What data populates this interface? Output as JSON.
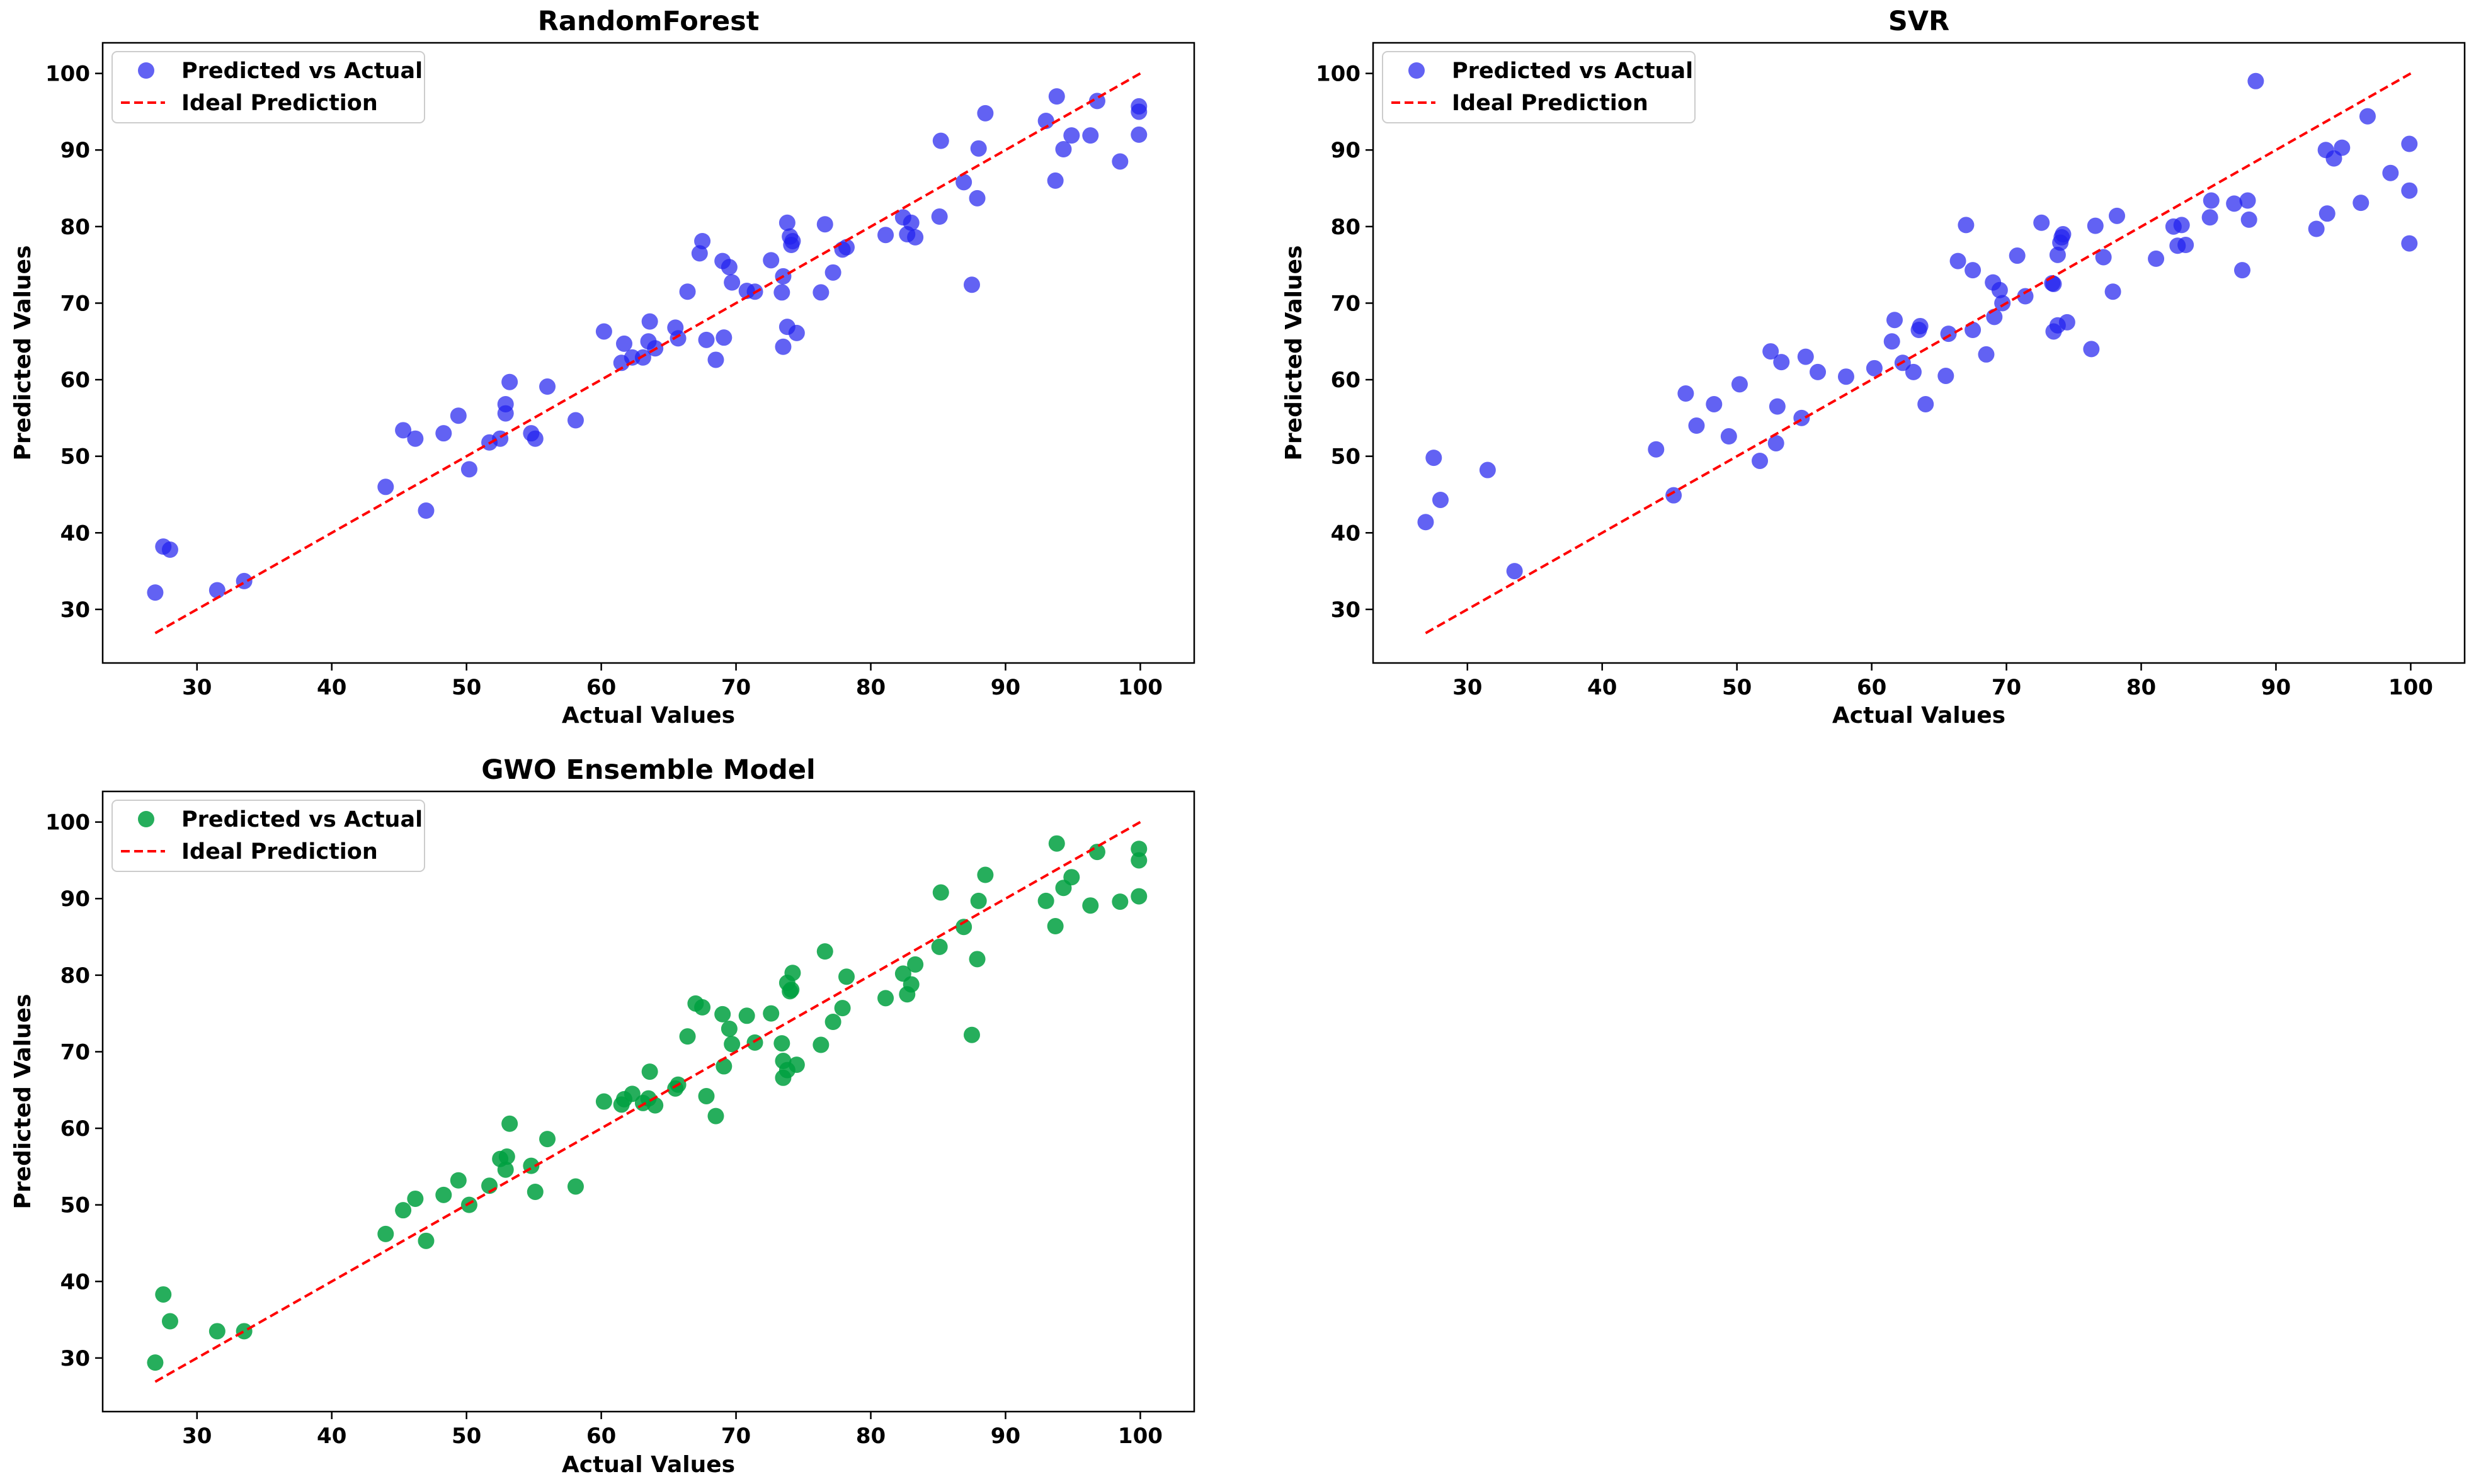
{
  "chart_data": [
    {
      "type": "scatter",
      "title": "RandomForest",
      "xlabel": "Actual Values",
      "ylabel": "Predicted Values",
      "xlim": [
        23,
        104
      ],
      "ylim": [
        23,
        104
      ],
      "xticks": [
        "30",
        "40",
        "50",
        "60",
        "70",
        "80",
        "90",
        "100"
      ],
      "yticks": [
        "30",
        "40",
        "50",
        "60",
        "70",
        "80",
        "90",
        "100"
      ],
      "grid": false,
      "legend_position": "top-left",
      "series": [
        {
          "name": "Predicted vs Actual",
          "kind": "scatter",
          "color": "#2020ee",
          "points": [
            [
              26.9,
              32.2
            ],
            [
              27.5,
              38.2
            ],
            [
              28,
              37.8
            ],
            [
              31.5,
              32.5
            ],
            [
              33.5,
              33.7
            ],
            [
              44,
              46
            ],
            [
              45.3,
              53.4
            ],
            [
              46.2,
              52.3
            ],
            [
              47,
              42.9
            ],
            [
              48.3,
              53
            ],
            [
              49.4,
              55.3
            ],
            [
              50.2,
              48.3
            ],
            [
              51.7,
              51.8
            ],
            [
              52.5,
              52.3
            ],
            [
              52.9,
              55.6
            ],
            [
              52.9,
              56.8
            ],
            [
              53.2,
              59.7
            ],
            [
              54.8,
              53
            ],
            [
              55.1,
              52.3
            ],
            [
              56,
              59.1
            ],
            [
              58.1,
              54.7
            ],
            [
              60.2,
              66.3
            ],
            [
              61.5,
              62.2
            ],
            [
              61.7,
              64.7
            ],
            [
              62.3,
              62.9
            ],
            [
              63.1,
              62.9
            ],
            [
              63.5,
              65
            ],
            [
              63.6,
              67.6
            ],
            [
              64,
              64.1
            ],
            [
              65.5,
              66.8
            ],
            [
              65.7,
              65.4
            ],
            [
              66.4,
              71.5
            ],
            [
              67.3,
              76.5
            ],
            [
              67.5,
              78.1
            ],
            [
              67.8,
              65.2
            ],
            [
              68.5,
              62.6
            ],
            [
              69,
              75.5
            ],
            [
              69.1,
              65.5
            ],
            [
              69.5,
              74.7
            ],
            [
              69.7,
              72.7
            ],
            [
              70.8,
              71.6
            ],
            [
              71.4,
              71.5
            ],
            [
              72.6,
              75.6
            ],
            [
              73.4,
              71.4
            ],
            [
              73.5,
              73.5
            ],
            [
              73.5,
              64.3
            ],
            [
              73.8,
              80.5
            ],
            [
              73.8,
              66.9
            ],
            [
              74,
              78.7
            ],
            [
              74.1,
              77.6
            ],
            [
              74.2,
              78.1
            ],
            [
              74.5,
              66.1
            ],
            [
              76.3,
              71.4
            ],
            [
              76.6,
              80.3
            ],
            [
              77.2,
              74
            ],
            [
              77.9,
              77
            ],
            [
              78.2,
              77.3
            ],
            [
              81.1,
              78.9
            ],
            [
              82.4,
              81.2
            ],
            [
              82.7,
              79
            ],
            [
              83,
              80.5
            ],
            [
              83.3,
              78.6
            ],
            [
              85.1,
              81.3
            ],
            [
              85.2,
              91.2
            ],
            [
              86.9,
              85.8
            ],
            [
              87.5,
              72.4
            ],
            [
              87.9,
              83.7
            ],
            [
              88,
              90.2
            ],
            [
              88.5,
              94.8
            ],
            [
              93,
              93.8
            ],
            [
              93.7,
              86
            ],
            [
              93.8,
              97
            ],
            [
              94.3,
              90.1
            ],
            [
              94.9,
              91.9
            ],
            [
              96.3,
              91.9
            ],
            [
              96.8,
              96.4
            ],
            [
              98.5,
              88.5
            ],
            [
              99.9,
              95.7
            ],
            [
              99.9,
              95
            ],
            [
              99.9,
              92
            ]
          ]
        },
        {
          "name": "Ideal Prediction",
          "kind": "line",
          "color": "#ff0000",
          "dash": "dashed",
          "points": [
            [
              26.9,
              26.9
            ],
            [
              100,
              100
            ]
          ]
        }
      ]
    },
    {
      "type": "scatter",
      "title": "SVR",
      "xlabel": "Actual Values",
      "ylabel": "Predicted Values",
      "xlim": [
        23,
        104
      ],
      "ylim": [
        23,
        104
      ],
      "xticks": [
        "30",
        "40",
        "50",
        "60",
        "70",
        "80",
        "90",
        "100"
      ],
      "yticks": [
        "30",
        "40",
        "50",
        "60",
        "70",
        "80",
        "90",
        "100"
      ],
      "grid": false,
      "legend_position": "top-left",
      "series": [
        {
          "name": "Predicted vs Actual",
          "kind": "scatter",
          "color": "#2020ee",
          "points": [
            [
              26.9,
              41.4
            ],
            [
              27.5,
              49.8
            ],
            [
              28,
              44.3
            ],
            [
              31.5,
              48.2
            ],
            [
              33.5,
              35
            ],
            [
              44,
              50.9
            ],
            [
              45.3,
              44.9
            ],
            [
              46.2,
              58.2
            ],
            [
              47,
              54
            ],
            [
              48.3,
              56.8
            ],
            [
              49.4,
              52.6
            ],
            [
              50.2,
              59.4
            ],
            [
              51.7,
              49.4
            ],
            [
              52.5,
              63.7
            ],
            [
              52.9,
              51.7
            ],
            [
              53,
              56.5
            ],
            [
              53.3,
              62.3
            ],
            [
              54.8,
              55
            ],
            [
              55.1,
              63
            ],
            [
              56,
              61
            ],
            [
              58.1,
              60.4
            ],
            [
              60.2,
              61.5
            ],
            [
              61.5,
              65
            ],
            [
              61.7,
              67.8
            ],
            [
              62.3,
              62.2
            ],
            [
              63.1,
              61
            ],
            [
              63.5,
              66.5
            ],
            [
              63.6,
              67
            ],
            [
              64,
              56.8
            ],
            [
              65.5,
              60.5
            ],
            [
              65.7,
              66
            ],
            [
              66.4,
              75.5
            ],
            [
              67,
              80.2
            ],
            [
              67.5,
              74.3
            ],
            [
              67.5,
              66.5
            ],
            [
              68.5,
              63.3
            ],
            [
              69,
              72.7
            ],
            [
              69.1,
              68.2
            ],
            [
              69.5,
              71.7
            ],
            [
              69.7,
              70
            ],
            [
              70.8,
              76.2
            ],
            [
              71.4,
              70.9
            ],
            [
              72.6,
              80.5
            ],
            [
              73.4,
              72.6
            ],
            [
              73.5,
              72.5
            ],
            [
              73.5,
              66.3
            ],
            [
              73.8,
              76.3
            ],
            [
              73.8,
              67.1
            ],
            [
              74,
              77.9
            ],
            [
              74.1,
              78.6
            ],
            [
              74.2,
              79
            ],
            [
              74.5,
              67.5
            ],
            [
              76.3,
              64
            ],
            [
              76.6,
              80.1
            ],
            [
              77.2,
              76
            ],
            [
              77.9,
              71.5
            ],
            [
              78.2,
              81.4
            ],
            [
              81.1,
              75.8
            ],
            [
              82.4,
              80
            ],
            [
              82.7,
              77.5
            ],
            [
              83,
              80.2
            ],
            [
              83.3,
              77.6
            ],
            [
              85.1,
              81.2
            ],
            [
              85.2,
              83.4
            ],
            [
              86.9,
              83
            ],
            [
              87.5,
              74.3
            ],
            [
              87.9,
              83.4
            ],
            [
              88,
              80.9
            ],
            [
              88.5,
              99
            ],
            [
              93,
              79.7
            ],
            [
              93.7,
              90
            ],
            [
              93.8,
              81.7
            ],
            [
              94.3,
              88.9
            ],
            [
              94.9,
              90.3
            ],
            [
              96.3,
              83.1
            ],
            [
              96.8,
              94.4
            ],
            [
              98.5,
              87
            ],
            [
              99.9,
              90.8
            ],
            [
              99.9,
              84.7
            ],
            [
              99.9,
              77.8
            ]
          ]
        },
        {
          "name": "Ideal Prediction",
          "kind": "line",
          "color": "#ff0000",
          "dash": "dashed",
          "points": [
            [
              26.9,
              26.9
            ],
            [
              100,
              100
            ]
          ]
        }
      ]
    },
    {
      "type": "scatter",
      "title": "GWO Ensemble Model",
      "xlabel": "Actual Values",
      "ylabel": "Predicted Values",
      "xlim": [
        23,
        104
      ],
      "ylim": [
        23,
        104
      ],
      "xticks": [
        "30",
        "40",
        "50",
        "60",
        "70",
        "80",
        "90",
        "100"
      ],
      "yticks": [
        "30",
        "40",
        "50",
        "60",
        "70",
        "80",
        "90",
        "100"
      ],
      "grid": false,
      "legend_position": "top-left",
      "series": [
        {
          "name": "Predicted vs Actual",
          "kind": "scatter",
          "color": "#00a040",
          "points": [
            [
              26.9,
              29.4
            ],
            [
              27.5,
              38.3
            ],
            [
              28,
              34.8
            ],
            [
              31.5,
              33.5
            ],
            [
              33.5,
              33.5
            ],
            [
              44,
              46.2
            ],
            [
              45.3,
              49.3
            ],
            [
              46.2,
              50.8
            ],
            [
              47,
              45.3
            ],
            [
              48.3,
              51.3
            ],
            [
              49.4,
              53.2
            ],
            [
              50.2,
              50
            ],
            [
              51.7,
              52.5
            ],
            [
              52.5,
              56
            ],
            [
              52.9,
              54.6
            ],
            [
              53,
              56.3
            ],
            [
              53.2,
              60.6
            ],
            [
              54.8,
              55.1
            ],
            [
              55.1,
              51.7
            ],
            [
              56,
              58.6
            ],
            [
              58.1,
              52.4
            ],
            [
              60.2,
              63.5
            ],
            [
              61.5,
              63.1
            ],
            [
              61.7,
              63.8
            ],
            [
              62.3,
              64.5
            ],
            [
              63.1,
              63.3
            ],
            [
              63.5,
              63.9
            ],
            [
              63.6,
              67.4
            ],
            [
              64,
              63
            ],
            [
              65.5,
              65.2
            ],
            [
              65.7,
              65.7
            ],
            [
              66.4,
              72
            ],
            [
              67,
              76.3
            ],
            [
              67.5,
              75.8
            ],
            [
              67.8,
              64.2
            ],
            [
              68.5,
              61.6
            ],
            [
              69,
              74.9
            ],
            [
              69.1,
              68.1
            ],
            [
              69.5,
              73
            ],
            [
              69.7,
              71
            ],
            [
              70.8,
              74.7
            ],
            [
              71.4,
              71.2
            ],
            [
              72.6,
              75
            ],
            [
              73.4,
              71.1
            ],
            [
              73.5,
              68.8
            ],
            [
              73.5,
              66.6
            ],
            [
              73.8,
              79
            ],
            [
              73.8,
              67.6
            ],
            [
              74,
              77.9
            ],
            [
              74.1,
              78.1
            ],
            [
              74.2,
              80.3
            ],
            [
              74.5,
              68.3
            ],
            [
              76.3,
              70.9
            ],
            [
              76.6,
              83.1
            ],
            [
              77.2,
              73.9
            ],
            [
              77.9,
              75.7
            ],
            [
              78.2,
              79.8
            ],
            [
              81.1,
              77
            ],
            [
              82.4,
              80.2
            ],
            [
              82.7,
              77.5
            ],
            [
              83,
              78.8
            ],
            [
              83.3,
              81.4
            ],
            [
              85.1,
              83.7
            ],
            [
              85.2,
              90.8
            ],
            [
              86.9,
              86.3
            ],
            [
              87.5,
              72.2
            ],
            [
              87.9,
              82.1
            ],
            [
              88,
              89.7
            ],
            [
              88.5,
              93.1
            ],
            [
              93,
              89.7
            ],
            [
              93.7,
              86.4
            ],
            [
              93.8,
              97.2
            ],
            [
              94.3,
              91.4
            ],
            [
              94.9,
              92.8
            ],
            [
              96.3,
              89.1
            ],
            [
              96.8,
              96.1
            ],
            [
              98.5,
              89.6
            ],
            [
              99.9,
              96.5
            ],
            [
              99.9,
              95
            ],
            [
              99.9,
              90.3
            ]
          ]
        },
        {
          "name": "Ideal Prediction",
          "kind": "line",
          "color": "#ff0000",
          "dash": "dashed",
          "points": [
            [
              26.9,
              26.9
            ],
            [
              100,
              100
            ]
          ]
        }
      ]
    }
  ]
}
